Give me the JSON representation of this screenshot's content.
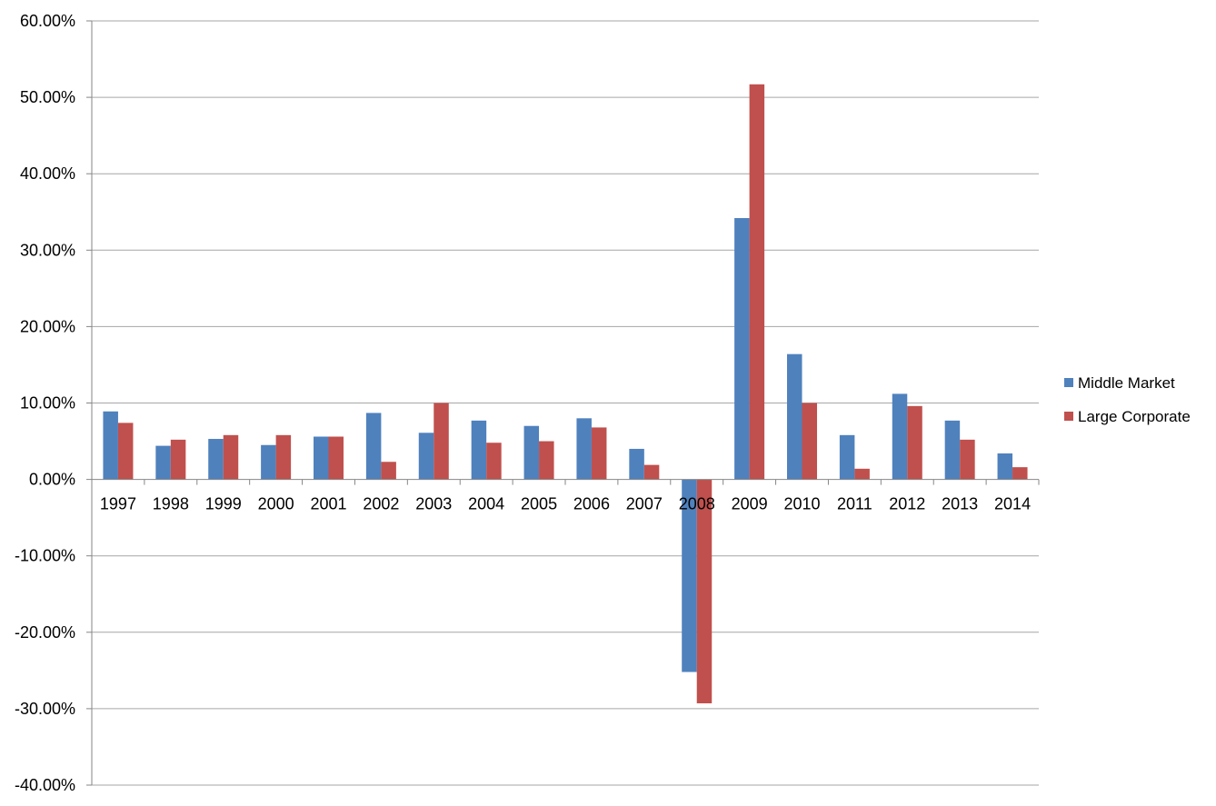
{
  "chart_data": {
    "type": "bar",
    "title": "",
    "xlabel": "",
    "ylabel": "",
    "categories": [
      "1997",
      "1998",
      "1999",
      "2000",
      "2001",
      "2002",
      "2003",
      "2004",
      "2005",
      "2006",
      "2007",
      "2008",
      "2009",
      "2010",
      "2011",
      "2012",
      "2013",
      "2014"
    ],
    "series": [
      {
        "name": "Middle Market",
        "color": "#4F81BD",
        "values": [
          8.9,
          4.4,
          5.3,
          4.5,
          5.6,
          8.7,
          6.1,
          7.7,
          7.0,
          8.0,
          4.0,
          -25.2,
          34.2,
          16.4,
          5.8,
          11.2,
          7.7,
          3.4
        ]
      },
      {
        "name": "Large Corporate",
        "color": "#C0504D",
        "values": [
          7.4,
          5.2,
          5.8,
          5.8,
          5.6,
          2.3,
          10.0,
          4.8,
          5.0,
          6.8,
          1.9,
          -29.3,
          51.7,
          10.0,
          1.4,
          9.6,
          5.2,
          1.6
        ]
      }
    ],
    "ylim": [
      -40,
      60
    ],
    "y_ticks": [
      60,
      50,
      40,
      30,
      20,
      10,
      0,
      -10,
      -20,
      -30,
      -40
    ],
    "y_tick_labels": [
      "60.00%",
      "50.00%",
      "40.00%",
      "30.00%",
      "20.00%",
      "10.00%",
      "0.00%",
      "-10.00%",
      "-20.00%",
      "-30.00%",
      "-40.00%"
    ],
    "grid": true,
    "legend": "right",
    "colors": {
      "gridline": "#A6A6A6",
      "axis": "#868686"
    }
  }
}
